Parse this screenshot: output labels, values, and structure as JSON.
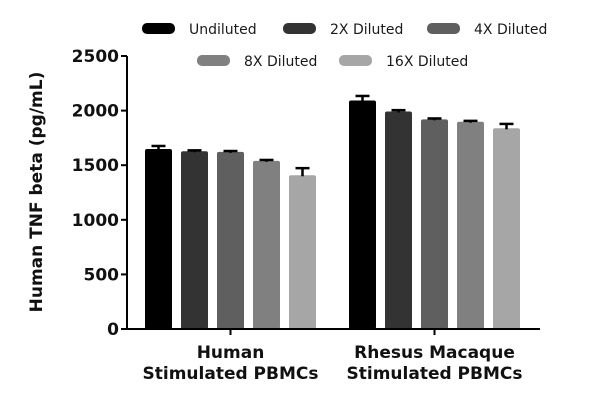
{
  "chart_data": {
    "type": "bar",
    "title": "",
    "xlabel": "",
    "ylabel": "Human TNF beta (pg/mL)",
    "ylim": [
      0,
      2500
    ],
    "yticks": [
      0,
      500,
      1000,
      1500,
      2000,
      2500
    ],
    "grid": false,
    "legend_position": "top",
    "categories": [
      [
        "Human",
        "Stimulated PBMCs"
      ],
      [
        "Rhesus Macaque",
        "Stimulated PBMCs"
      ]
    ],
    "series": [
      {
        "name": "Undiluted",
        "color": "#000000",
        "values": [
          1648,
          2092
        ],
        "errors": [
          28,
          42
        ]
      },
      {
        "name": "2X Diluted",
        "color": "#333333",
        "values": [
          1628,
          1992
        ],
        "errors": [
          8,
          12
        ]
      },
      {
        "name": "4X Diluted",
        "color": "#5f5f5f",
        "values": [
          1622,
          1920
        ],
        "errors": [
          8,
          8
        ]
      },
      {
        "name": "8X Diluted",
        "color": "#808080",
        "values": [
          1540,
          1898
        ],
        "errors": [
          8,
          8
        ]
      },
      {
        "name": "16X Diluted",
        "color": "#a6a6a6",
        "values": [
          1408,
          1838
        ],
        "errors": [
          65,
          40
        ]
      }
    ]
  }
}
